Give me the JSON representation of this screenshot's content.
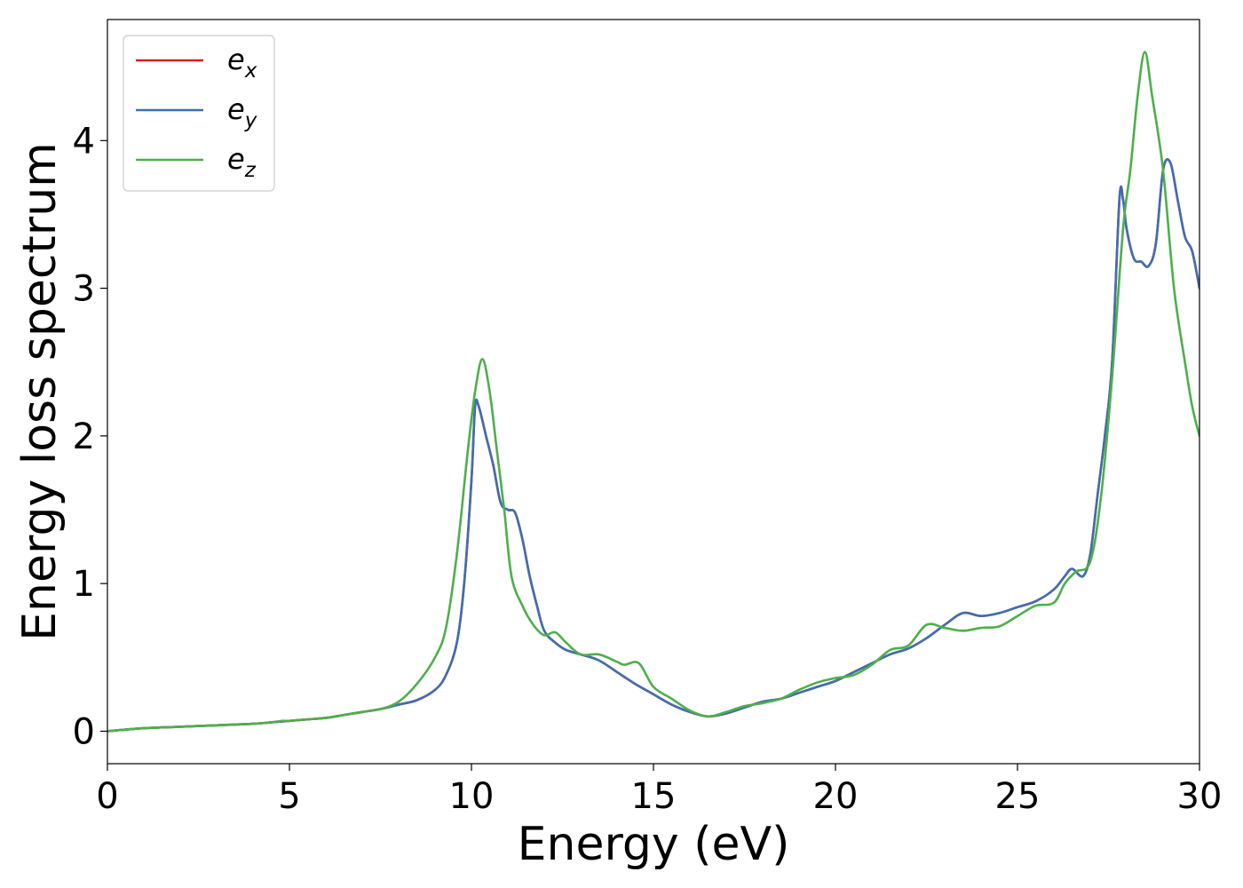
{
  "chart_data": {
    "type": "line",
    "title": "",
    "xlabel": "Energy (eV)",
    "ylabel": "Energy loss spectrum",
    "xlim": [
      0,
      30
    ],
    "ylim": [
      -0.22,
      4.82
    ],
    "xticks": [
      0,
      5,
      10,
      15,
      20,
      25,
      30
    ],
    "yticks": [
      0,
      1,
      2,
      3,
      4
    ],
    "grid": false,
    "legend_position": "top-left",
    "series": [
      {
        "name": "e_x",
        "label_base": "e",
        "label_sub": "x",
        "color": "#e41a1c",
        "x": [
          0,
          1,
          2,
          3,
          4,
          4.5,
          5,
          5.5,
          6,
          6.5,
          7,
          7.5,
          8,
          8.5,
          9,
          9.3,
          9.6,
          9.8,
          10,
          10.1,
          10.2,
          10.4,
          10.6,
          10.8,
          11,
          11.2,
          11.4,
          11.6,
          11.8,
          12,
          12.3,
          12.6,
          13,
          13.5,
          14,
          14.5,
          15,
          15.5,
          16,
          16.5,
          17,
          17.5,
          18,
          18.5,
          19,
          19.5,
          20,
          20.5,
          21,
          21.5,
          22,
          22.5,
          23,
          23.5,
          24,
          24.5,
          25,
          25.5,
          26,
          26.3,
          26.5,
          26.8,
          27,
          27.2,
          27.4,
          27.6,
          27.8,
          27.9,
          28,
          28.2,
          28.4,
          28.6,
          28.8,
          29,
          29.2,
          29.4,
          29.6,
          29.8,
          30
        ],
        "y": [
          0,
          0.02,
          0.03,
          0.04,
          0.05,
          0.06,
          0.07,
          0.08,
          0.09,
          0.11,
          0.13,
          0.15,
          0.18,
          0.21,
          0.28,
          0.38,
          0.6,
          1.0,
          1.7,
          2.2,
          2.2,
          2.0,
          1.8,
          1.55,
          1.5,
          1.48,
          1.3,
          1.05,
          0.85,
          0.68,
          0.6,
          0.55,
          0.52,
          0.48,
          0.4,
          0.32,
          0.25,
          0.18,
          0.13,
          0.1,
          0.12,
          0.16,
          0.2,
          0.22,
          0.26,
          0.3,
          0.34,
          0.4,
          0.46,
          0.52,
          0.56,
          0.63,
          0.72,
          0.8,
          0.78,
          0.8,
          0.84,
          0.88,
          0.96,
          1.05,
          1.1,
          1.05,
          1.2,
          1.6,
          2.0,
          2.5,
          3.6,
          3.6,
          3.4,
          3.2,
          3.18,
          3.15,
          3.3,
          3.8,
          3.85,
          3.6,
          3.35,
          3.25,
          3.0
        ]
      },
      {
        "name": "e_y",
        "label_base": "e",
        "label_sub": "y",
        "color": "#3e6fb0",
        "x": [
          0,
          1,
          2,
          3,
          4,
          4.5,
          5,
          5.5,
          6,
          6.5,
          7,
          7.5,
          8,
          8.5,
          9,
          9.3,
          9.6,
          9.8,
          10,
          10.1,
          10.2,
          10.4,
          10.6,
          10.8,
          11,
          11.2,
          11.4,
          11.6,
          11.8,
          12,
          12.3,
          12.6,
          13,
          13.5,
          14,
          14.5,
          15,
          15.5,
          16,
          16.5,
          17,
          17.5,
          18,
          18.5,
          19,
          19.5,
          20,
          20.5,
          21,
          21.5,
          22,
          22.5,
          23,
          23.5,
          24,
          24.5,
          25,
          25.5,
          26,
          26.3,
          26.5,
          26.8,
          27,
          27.2,
          27.4,
          27.6,
          27.8,
          27.9,
          28,
          28.2,
          28.4,
          28.6,
          28.8,
          29,
          29.2,
          29.4,
          29.6,
          29.8,
          30
        ],
        "y": [
          0,
          0.02,
          0.03,
          0.04,
          0.05,
          0.06,
          0.07,
          0.08,
          0.09,
          0.11,
          0.13,
          0.15,
          0.18,
          0.21,
          0.28,
          0.38,
          0.6,
          1.0,
          1.7,
          2.2,
          2.2,
          2.0,
          1.8,
          1.55,
          1.5,
          1.48,
          1.3,
          1.05,
          0.85,
          0.68,
          0.6,
          0.55,
          0.52,
          0.48,
          0.4,
          0.32,
          0.25,
          0.18,
          0.13,
          0.1,
          0.12,
          0.16,
          0.2,
          0.22,
          0.26,
          0.3,
          0.34,
          0.4,
          0.46,
          0.52,
          0.56,
          0.63,
          0.72,
          0.8,
          0.78,
          0.8,
          0.84,
          0.88,
          0.96,
          1.05,
          1.1,
          1.05,
          1.2,
          1.6,
          2.0,
          2.5,
          3.6,
          3.6,
          3.4,
          3.2,
          3.18,
          3.15,
          3.3,
          3.8,
          3.85,
          3.6,
          3.35,
          3.25,
          3.0
        ]
      },
      {
        "name": "e_z",
        "label_base": "e",
        "label_sub": "z",
        "color": "#4daf4a",
        "x": [
          0,
          1,
          2,
          3,
          4,
          4.5,
          4.8,
          5,
          5.5,
          6,
          6.5,
          7,
          7.5,
          8,
          8.5,
          9,
          9.3,
          9.6,
          9.9,
          10.1,
          10.3,
          10.5,
          10.7,
          10.9,
          11.1,
          11.4,
          11.7,
          12,
          12.3,
          12.6,
          13,
          13.5,
          14,
          14.2,
          14.6,
          15,
          15.5,
          16,
          16.5,
          17,
          17.5,
          18,
          18.5,
          19,
          19.5,
          20,
          20.5,
          21,
          21.5,
          22,
          22.5,
          23,
          23.5,
          24,
          24.5,
          25,
          25.5,
          26,
          26.3,
          26.6,
          27,
          27.3,
          27.6,
          27.9,
          28.1,
          28.3,
          28.5,
          28.7,
          29,
          29.3,
          29.6,
          29.8,
          30
        ],
        "y": [
          0,
          0.02,
          0.03,
          0.04,
          0.05,
          0.06,
          0.07,
          0.07,
          0.08,
          0.09,
          0.11,
          0.13,
          0.15,
          0.2,
          0.32,
          0.5,
          0.7,
          1.2,
          1.9,
          2.3,
          2.52,
          2.3,
          1.9,
          1.5,
          1.05,
          0.85,
          0.72,
          0.65,
          0.67,
          0.6,
          0.52,
          0.52,
          0.47,
          0.45,
          0.46,
          0.3,
          0.22,
          0.14,
          0.1,
          0.13,
          0.17,
          0.19,
          0.22,
          0.28,
          0.33,
          0.36,
          0.38,
          0.45,
          0.55,
          0.58,
          0.72,
          0.7,
          0.68,
          0.7,
          0.71,
          0.78,
          0.85,
          0.87,
          1.0,
          1.08,
          1.15,
          1.6,
          2.4,
          3.4,
          3.8,
          4.3,
          4.6,
          4.3,
          3.8,
          3.0,
          2.5,
          2.2,
          2.0
        ]
      }
    ]
  }
}
